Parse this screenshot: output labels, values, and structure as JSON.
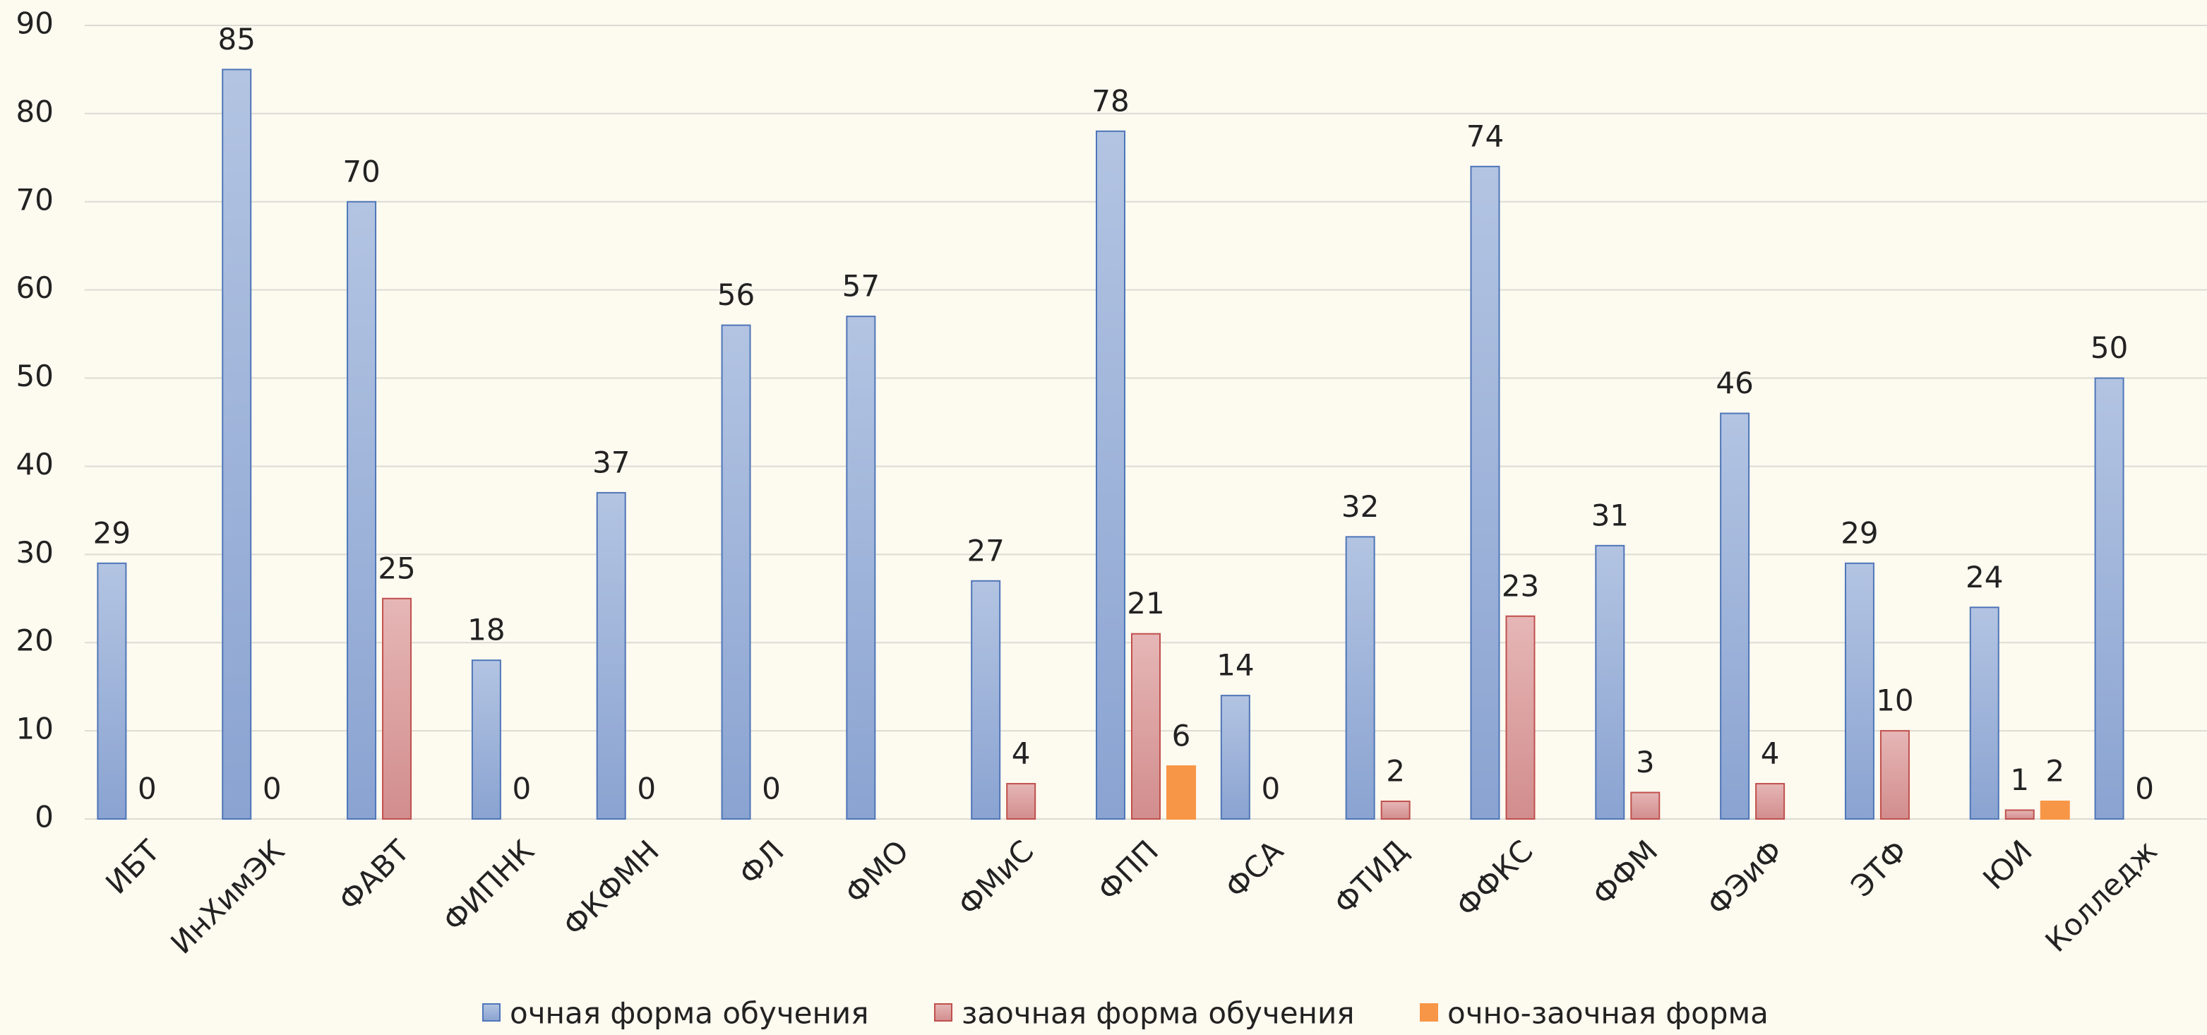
{
  "chart_data": {
    "type": "bar",
    "categories": [
      "ИБТ",
      "ИнХимЭК",
      "ФАВТ",
      "ФИПНК",
      "ФКФМН",
      "ФЛ",
      "ФМО",
      "ФМиС",
      "ФПП",
      "ФСА",
      "ФТИД",
      "ФФКС",
      "ФФМ",
      "ФЭиФ",
      "ЭТФ",
      "ЮИ",
      "Колледж"
    ],
    "series": [
      {
        "name": "очная форма обучения",
        "color": "#9db3d9",
        "values": [
          29,
          85,
          70,
          18,
          37,
          56,
          57,
          27,
          78,
          14,
          32,
          74,
          31,
          46,
          29,
          24,
          50
        ]
      },
      {
        "name": "заочная форма обучения",
        "color": "#dba4a4",
        "values": [
          0,
          0,
          25,
          0,
          0,
          0,
          null,
          4,
          21,
          0,
          2,
          23,
          3,
          4,
          10,
          1,
          0
        ]
      },
      {
        "name": "очно-заочная форма",
        "color": "#f79646",
        "values": [
          null,
          null,
          null,
          null,
          null,
          null,
          null,
          null,
          6,
          null,
          null,
          null,
          null,
          null,
          null,
          2,
          null
        ]
      }
    ],
    "ylim": [
      0,
      90
    ],
    "yticks": [
      0,
      10,
      20,
      30,
      40,
      50,
      60,
      70,
      80,
      90
    ],
    "grid": true,
    "legend": "bottom"
  }
}
